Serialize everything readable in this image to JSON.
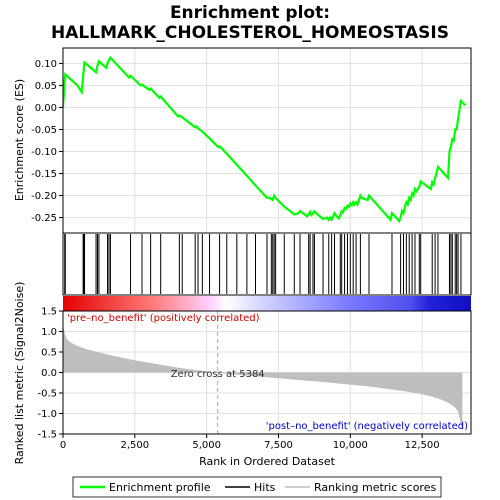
{
  "chart_data": {
    "type": "line",
    "title": "Enrichment plot:\nHALLMARK_CHOLESTEROL_HOMEOSTASIS",
    "title_lines": [
      "Enrichment plot:",
      "HALLMARK_CHOLESTEROL_HOMEOSTASIS"
    ],
    "xlabel": "Rank in Ordered Dataset",
    "xlim": [
      0,
      14200
    ],
    "x_ticks": [
      0,
      2500,
      5000,
      7500,
      10000,
      12500
    ],
    "x_tick_labels": [
      "0",
      "2,500",
      "5,000",
      "7,500",
      "10,000",
      "12,500"
    ],
    "es_panel": {
      "ylabel": "Enrichment score (ES)",
      "ylim": [
        -0.285,
        0.135
      ],
      "y_ticks": [
        0.1,
        0.05,
        0.0,
        -0.05,
        -0.1,
        -0.15,
        -0.2,
        -0.25
      ],
      "y_tick_labels": [
        "0.10",
        "0.05",
        "0.00",
        "-0.05",
        "-0.10",
        "-0.15",
        "-0.20",
        "-0.25"
      ],
      "grid": true,
      "series": [
        {
          "name": "Enrichment profile",
          "color": "#00ff00",
          "x": [
            0,
            60,
            80,
            500,
            650,
            700,
            750,
            1150,
            1200,
            1250,
            1500,
            1550,
            1600,
            1650,
            2300,
            2350,
            2700,
            2750,
            3000,
            3050,
            3350,
            3400,
            4000,
            4050,
            4150,
            4600,
            4650,
            4700,
            4850,
            5100,
            5400,
            5450,
            5700,
            6050,
            6400,
            6600,
            7000,
            7100,
            7200,
            7250,
            7300,
            7350,
            7400,
            7700,
            8000,
            8050,
            8200,
            8250,
            8500,
            8550,
            8600,
            8650,
            8700,
            8750,
            8950,
            9050,
            9200,
            9250,
            9300,
            9350,
            9400,
            9450,
            9500,
            9600,
            9650,
            9700,
            9750,
            9800,
            9850,
            9900,
            9950,
            10000,
            10050,
            10100,
            10150,
            10200,
            10250,
            10350,
            10400,
            10600,
            10650,
            11400,
            11450,
            11700,
            11750,
            11800,
            11850,
            11900,
            11950,
            12000,
            12050,
            12100,
            12150,
            12200,
            12250,
            12300,
            12400,
            12450,
            12800,
            12850,
            12900,
            12950,
            13000,
            13050,
            13400,
            13450,
            13500,
            13550,
            13600,
            13650,
            13700,
            13750,
            13850,
            14000
          ],
          "y": [
            0.0,
            0.06,
            0.075,
            0.05,
            0.035,
            0.07,
            0.102,
            0.08,
            0.095,
            0.105,
            0.09,
            0.1,
            0.108,
            0.113,
            0.068,
            0.072,
            0.05,
            0.052,
            0.04,
            0.043,
            0.022,
            0.025,
            -0.02,
            -0.018,
            -0.022,
            -0.045,
            -0.043,
            -0.047,
            -0.055,
            -0.07,
            -0.09,
            -0.088,
            -0.105,
            -0.13,
            -0.155,
            -0.17,
            -0.198,
            -0.205,
            -0.205,
            -0.208,
            -0.21,
            -0.2,
            -0.205,
            -0.225,
            -0.24,
            -0.243,
            -0.24,
            -0.235,
            -0.247,
            -0.243,
            -0.237,
            -0.244,
            -0.24,
            -0.236,
            -0.248,
            -0.253,
            -0.25,
            -0.255,
            -0.25,
            -0.255,
            -0.248,
            -0.24,
            -0.245,
            -0.252,
            -0.245,
            -0.235,
            -0.238,
            -0.228,
            -0.23,
            -0.223,
            -0.226,
            -0.218,
            -0.222,
            -0.215,
            -0.22,
            -0.215,
            -0.22,
            -0.2,
            -0.205,
            -0.21,
            -0.2,
            -0.255,
            -0.24,
            -0.258,
            -0.25,
            -0.235,
            -0.24,
            -0.225,
            -0.215,
            -0.22,
            -0.205,
            -0.21,
            -0.195,
            -0.2,
            -0.185,
            -0.19,
            -0.18,
            -0.168,
            -0.185,
            -0.17,
            -0.175,
            -0.16,
            -0.15,
            -0.135,
            -0.16,
            -0.1,
            -0.09,
            -0.072,
            -0.075,
            -0.05,
            -0.05,
            -0.025,
            0.015,
            0.005
          ]
        }
      ]
    },
    "hits": {
      "name": "Hits",
      "color": "#000000",
      "x": [
        60,
        80,
        700,
        730,
        750,
        1150,
        1200,
        1250,
        1550,
        1600,
        1650,
        2350,
        2750,
        3050,
        3400,
        4050,
        4150,
        4600,
        4700,
        4850,
        5100,
        5450,
        5700,
        6050,
        6400,
        6700,
        7100,
        7250,
        7300,
        7350,
        7400,
        7700,
        8050,
        8250,
        8550,
        8600,
        8700,
        8750,
        9050,
        9250,
        9350,
        9450,
        9650,
        9700,
        9800,
        9900,
        10000,
        10100,
        10200,
        10350,
        10650,
        11450,
        11750,
        11850,
        11950,
        12050,
        12150,
        12250,
        12400,
        12450,
        12850,
        12950,
        13050,
        13450,
        13500,
        13550,
        13650,
        13700,
        13750,
        13850
      ]
    },
    "metric_panel": {
      "ylabel": "Ranked list metric (Signal2Noise)",
      "ylim": [
        -1.5,
        1.5
      ],
      "y_ticks": [
        1.5,
        1.0,
        0.5,
        0.0,
        -0.5,
        -1.0,
        -1.5
      ],
      "y_tick_labels": [
        "1.5",
        "1.0",
        "0.5",
        "0.0",
        "-0.5",
        "-1.0",
        "-1.5"
      ],
      "grid": true,
      "series": [
        {
          "name": "Ranking metric scores",
          "color": "#bebebe",
          "x": [
            0,
            20,
            60,
            150,
            300,
            500,
            800,
            1200,
            1600,
            2000,
            2500,
            3000,
            3500,
            4000,
            4500,
            5000,
            5384,
            5800,
            6500,
            7000,
            7500,
            8000,
            8500,
            9000,
            9500,
            10000,
            10500,
            11000,
            11500,
            12000,
            12500,
            12800,
            13000,
            13200,
            13400,
            13550,
            13650,
            13750,
            13800,
            13850,
            13900
          ],
          "y": [
            1.4,
            1.1,
            0.95,
            0.8,
            0.72,
            0.65,
            0.57,
            0.5,
            0.43,
            0.37,
            0.3,
            0.24,
            0.18,
            0.12,
            0.07,
            0.03,
            0.0,
            -0.04,
            -0.08,
            -0.11,
            -0.14,
            -0.17,
            -0.2,
            -0.23,
            -0.26,
            -0.3,
            -0.33,
            -0.37,
            -0.42,
            -0.47,
            -0.53,
            -0.58,
            -0.62,
            -0.67,
            -0.74,
            -0.8,
            -0.86,
            -0.95,
            -1.1,
            -1.3,
            -1.45
          ]
        }
      ],
      "zero_cross_x": 5384,
      "zero_cross_label": "Zero cross at 5384",
      "pos_label": "'pre–no_benefit' (positively correlated)",
      "neg_label": "'post–no_benefit' (negatively correlated)"
    },
    "heat_bar": {
      "positive_color": "#ff0000",
      "neutral_color": "#ffffff",
      "negative_color": "#0000ff"
    },
    "legend": {
      "placement": "bottom",
      "entries": [
        {
          "label": "Enrichment profile",
          "color": "#00ff00"
        },
        {
          "label": "Hits",
          "color": "#000000"
        },
        {
          "label": "Ranking metric scores",
          "color": "#bebebe"
        }
      ]
    }
  }
}
